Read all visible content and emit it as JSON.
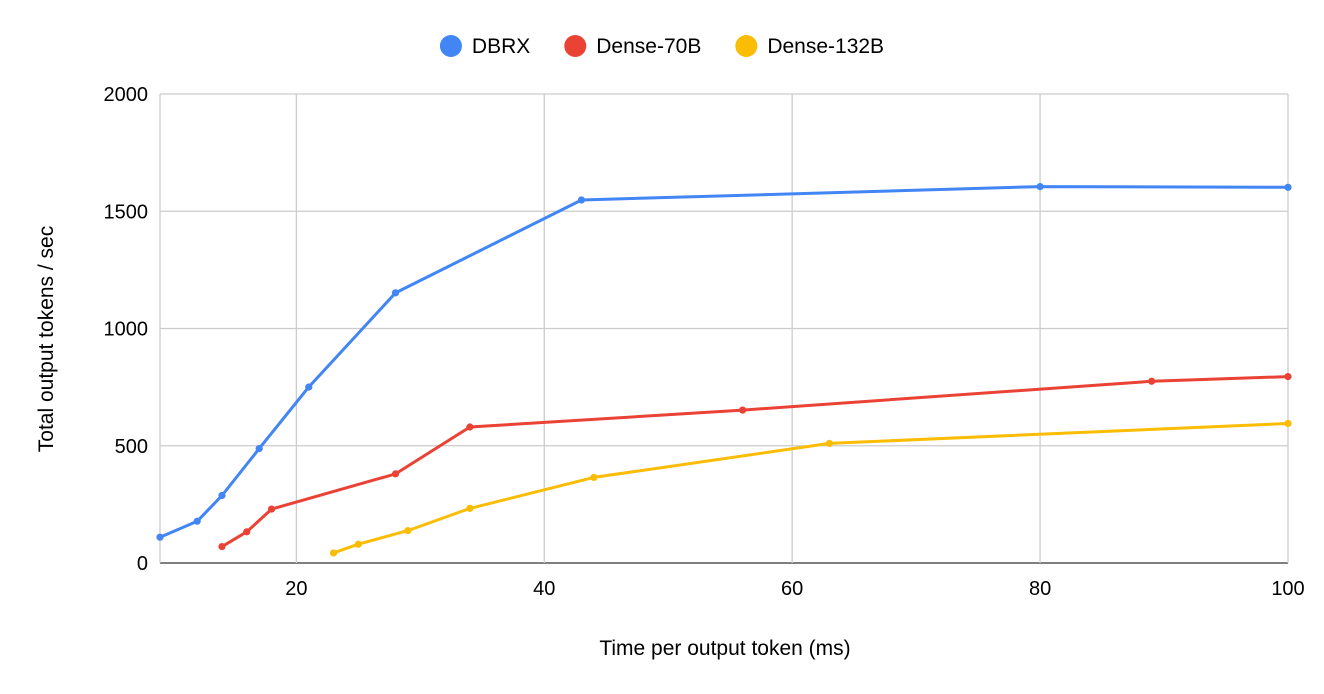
{
  "chart_data": {
    "type": "line",
    "title": "",
    "xlabel": "Time per output token (ms)",
    "ylabel": "Total output tokens / sec",
    "xlim": [
      9,
      100
    ],
    "ylim": [
      0,
      2000
    ],
    "xticks": [
      20,
      40,
      60,
      80,
      100
    ],
    "yticks": [
      0,
      500,
      1000,
      1500,
      2000
    ],
    "grid": true,
    "legend_position": "top",
    "series": [
      {
        "name": "DBRX",
        "color": "#4285f4",
        "points": [
          [
            9,
            110
          ],
          [
            12,
            178
          ],
          [
            14,
            288
          ],
          [
            17,
            488
          ],
          [
            21,
            750
          ],
          [
            28,
            1152
          ],
          [
            43,
            1548
          ],
          [
            80,
            1605
          ],
          [
            100,
            1602
          ]
        ]
      },
      {
        "name": "Dense-70B",
        "color": "#ea4335",
        "points": [
          [
            14,
            70
          ],
          [
            16,
            133
          ],
          [
            18,
            230
          ],
          [
            28,
            380
          ],
          [
            34,
            580
          ],
          [
            56,
            652
          ],
          [
            89,
            775
          ],
          [
            100,
            795
          ]
        ]
      },
      {
        "name": "Dense-132B",
        "color": "#fbbc04",
        "points": [
          [
            23,
            43
          ],
          [
            25,
            80
          ],
          [
            29,
            138
          ],
          [
            34,
            233
          ],
          [
            44,
            365
          ],
          [
            63,
            510
          ],
          [
            100,
            595
          ]
        ]
      }
    ]
  }
}
